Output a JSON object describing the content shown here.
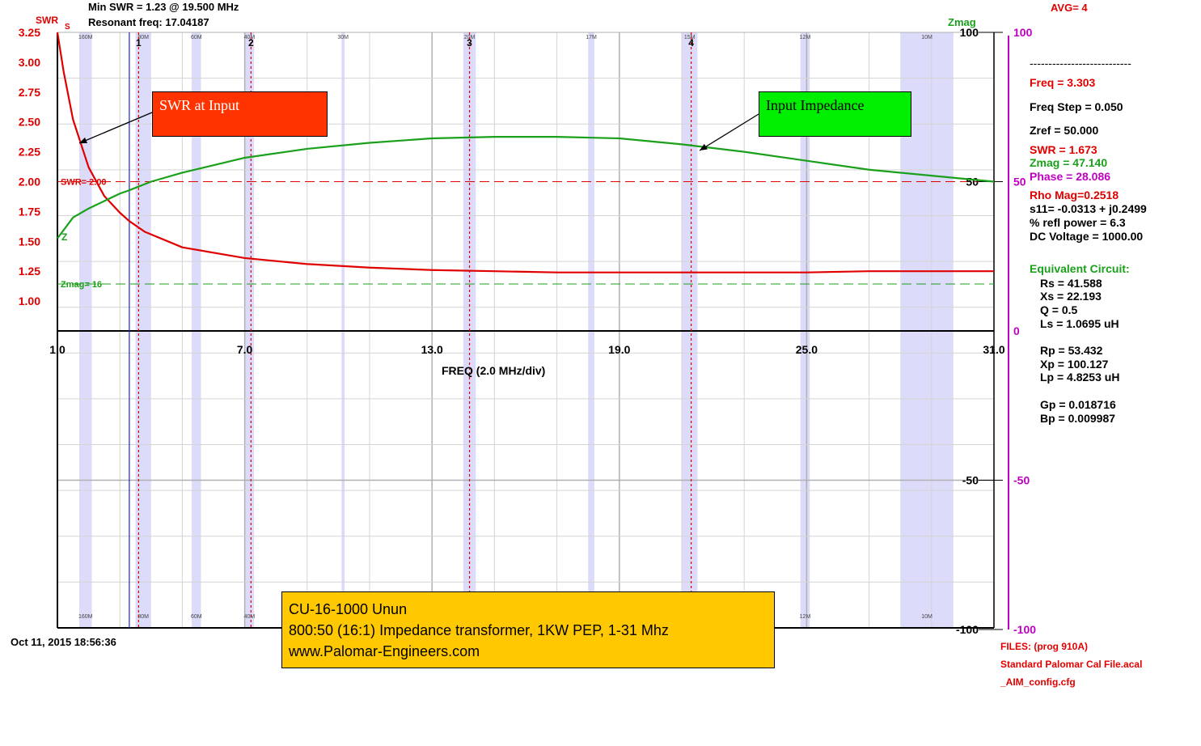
{
  "header": {
    "min_swr": "Min SWR =   1.23 @  19.500 MHz",
    "resonant": "Resonant freq:  17.04187",
    "avg": "AVG=  4"
  },
  "axes": {
    "swr_title": "SWR",
    "swr_sub": "S",
    "zmag_title": "Zmag",
    "xlabel": "FREQ (2.0 MHz/div)",
    "swr_ticks": [
      "3.25",
      "3.00",
      "2.75",
      "2.50",
      "2.25",
      "2.00",
      "1.75",
      "1.50",
      "1.25",
      "1.00"
    ],
    "x_ticks": [
      "1.0",
      "7.0",
      "13.0",
      "19.0",
      "25.0",
      "31.0"
    ],
    "z_right_inner": [
      "100",
      "50",
      "-50",
      "-100"
    ],
    "z_right_outer": [
      "100",
      "50",
      "0",
      "-50",
      "-100"
    ]
  },
  "bands": {
    "top": [
      "160M",
      "80M",
      "60M",
      "40M",
      "30M",
      "20M",
      "17M",
      "15M",
      "12M",
      "10M"
    ],
    "bottom": [
      "160M",
      "80M",
      "60M",
      "40M",
      "12M",
      "10M"
    ]
  },
  "markers": [
    "1",
    "2",
    "3",
    "4"
  ],
  "ref_lines": {
    "swr": "SWR= 2.00",
    "zmag": "Zmag= 16",
    "z_curve_label": "Z"
  },
  "callouts": {
    "swr": "SWR at Input",
    "impedance": "Input Impedance"
  },
  "note": {
    "line1": "CU-16-1000 Unun",
    "line2": "800:50 (16:1) Impedance transformer, 1KW PEP, 1-31 Mhz",
    "line3": "www.Palomar-Engineers.com"
  },
  "timestamp": "Oct 11, 2015   18:56:36",
  "readout": {
    "divider": "---------------------------",
    "freq": "Freq = 3.303",
    "freq_step": "Freq Step = 0.050",
    "zref": "Zref =   50.000",
    "swr": "SWR  =   1.673",
    "zmag": "Zmag =   47.140",
    "phase": "Phase =   28.086",
    "rho": "Rho Mag=0.2518",
    "s11": "s11= -0.0313 + j0.2499",
    "refl": "% refl power =  6.3",
    "dc": "DC Voltage =  1000.00",
    "eq_title": "Equivalent Circuit:",
    "rs": "Rs =   41.588",
    "xs": "Xs =   22.193",
    "q": "Q =  0.5",
    "ls": "Ls =     1.0695 uH",
    "rp": "Rp =   53.432",
    "xp": "Xp =  100.127",
    "lp": "Lp =    4.8253  uH",
    "gp": "Gp =  0.018716",
    "bp": "Bp =  0.009987"
  },
  "files": {
    "line1": "FILES:  (prog 910A)",
    "line2": "Standard Palomar Cal File.acal",
    "line3": "_AIM_config.cfg"
  },
  "colors": {
    "swr": "#e00000",
    "zmag": "#1aa01a",
    "phase": "#c000c0",
    "band": "#dcdcfa",
    "cursor": "#2222cc",
    "callout_swr": "#ff3300",
    "callout_imp": "#00ee00",
    "note_bg": "#ffc800"
  },
  "chart_data": {
    "type": "line",
    "x_unit": "MHz",
    "xlim": [
      1.0,
      31.0
    ],
    "swr_ylim": [
      0.75,
      3.25
    ],
    "zmag_ylim": [
      -100,
      100
    ],
    "band_ranges": [
      [
        1.7,
        2.1
      ],
      [
        3.5,
        4.0
      ],
      [
        5.3,
        5.6
      ],
      [
        7.0,
        7.3
      ],
      [
        10.1,
        10.2
      ],
      [
        14.0,
        14.4
      ],
      [
        18.0,
        18.2
      ],
      [
        21.0,
        21.5
      ],
      [
        24.8,
        25.1
      ],
      [
        28.0,
        29.7
      ]
    ],
    "cursor_mhz": 3.303,
    "marker_mhz": [
      3.6,
      7.2,
      14.2,
      21.3
    ],
    "swr_ref": 2.0,
    "zmag_ref": 16,
    "series": [
      {
        "name": "SWR",
        "axis": "swr",
        "x": [
          1.0,
          1.2,
          1.5,
          2.0,
          2.5,
          3.0,
          3.3,
          3.8,
          5.0,
          7.0,
          9.0,
          11.0,
          13.0,
          15.0,
          17.0,
          19.0,
          21.0,
          23.0,
          25.0,
          27.0,
          29.0,
          31.0
        ],
        "y": [
          3.25,
          2.92,
          2.52,
          2.12,
          1.88,
          1.74,
          1.67,
          1.58,
          1.45,
          1.36,
          1.31,
          1.28,
          1.26,
          1.25,
          1.24,
          1.24,
          1.24,
          1.24,
          1.24,
          1.25,
          1.25,
          1.25
        ]
      },
      {
        "name": "Zmag",
        "axis": "zmag",
        "x": [
          1.0,
          1.5,
          2.0,
          3.0,
          3.3,
          4.0,
          5.0,
          7.0,
          9.0,
          11.0,
          13.0,
          15.0,
          17.0,
          19.0,
          21.0,
          23.0,
          25.0,
          27.0,
          29.0,
          31.0
        ],
        "y": [
          31,
          38,
          41,
          46,
          47.1,
          50,
          53,
          58,
          61,
          63,
          64.5,
          65,
          65,
          64.5,
          62.5,
          60,
          57,
          54,
          52,
          50
        ]
      }
    ]
  }
}
